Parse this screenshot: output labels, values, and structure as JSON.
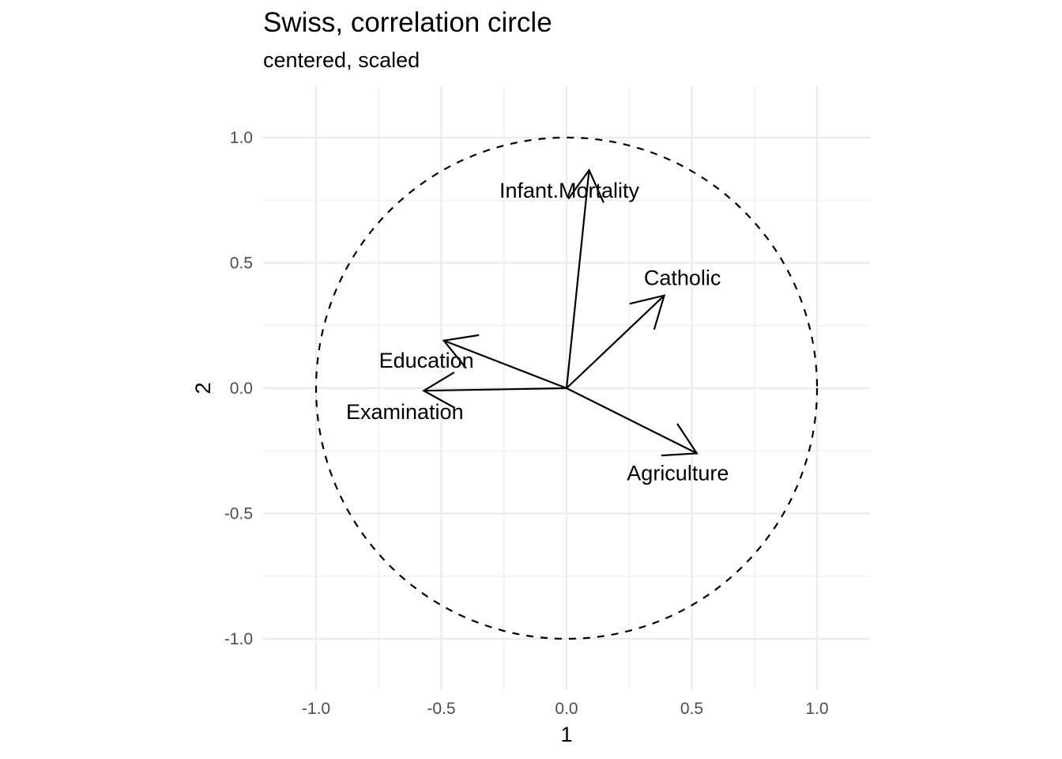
{
  "chart_data": {
    "type": "scatter",
    "subtype": "correlation-circle",
    "title": "Swiss, correlation circle",
    "subtitle": "centered, scaled",
    "xlabel": "1",
    "ylabel": "2",
    "xlim": [
      -1.2,
      1.2
    ],
    "ylim": [
      -1.2,
      1.2
    ],
    "x_ticks": [
      -1.0,
      -0.5,
      0.0,
      0.5,
      1.0
    ],
    "y_ticks": [
      -1.0,
      -0.5,
      0.0,
      0.5,
      1.0
    ],
    "x_tick_labels": [
      "-1.0",
      "-0.5",
      "0.0",
      "0.5",
      "1.0"
    ],
    "y_tick_labels": [
      "-1.0",
      "-0.5",
      "0.0",
      "0.5",
      "1.0"
    ],
    "grid": true,
    "unit_circle": {
      "radius": 1.0,
      "style": "dashed"
    },
    "variables": [
      {
        "name": "Agriculture",
        "x": 0.52,
        "y": -0.26
      },
      {
        "name": "Examination",
        "x": -0.57,
        "y": -0.01
      },
      {
        "name": "Education",
        "x": -0.49,
        "y": 0.19
      },
      {
        "name": "Catholic",
        "x": 0.39,
        "y": 0.37
      },
      {
        "name": "Infant.Mortality",
        "x": 0.09,
        "y": 0.87
      }
    ],
    "colors": {
      "arrow": "#000000",
      "grid": "#ebebeb",
      "tick_text": "#4d4d4d",
      "background": "#ffffff"
    }
  }
}
